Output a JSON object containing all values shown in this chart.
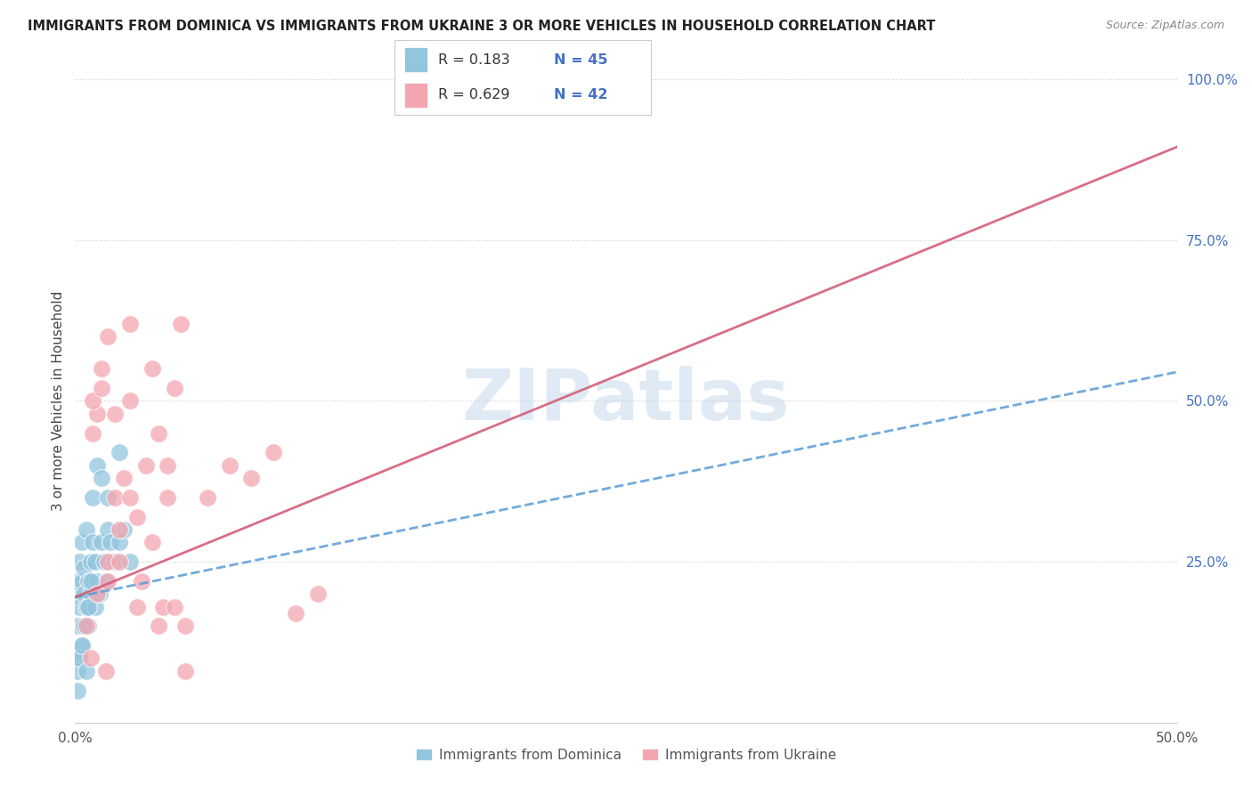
{
  "title": "IMMIGRANTS FROM DOMINICA VS IMMIGRANTS FROM UKRAINE 3 OR MORE VEHICLES IN HOUSEHOLD CORRELATION CHART",
  "source": "Source: ZipAtlas.com",
  "ylabel": "3 or more Vehicles in Household",
  "xlim": [
    0,
    0.5
  ],
  "ylim": [
    0,
    1.0
  ],
  "xtick_labels": [
    "0.0%",
    "",
    "",
    "",
    "",
    "50.0%"
  ],
  "ytick_vals": [
    0.0,
    0.25,
    0.5,
    0.75,
    1.0
  ],
  "ytick_labels": [
    "",
    "25.0%",
    "50.0%",
    "75.0%",
    "100.0%"
  ],
  "watermark": "ZIPatlas",
  "legend_r1": "R = 0.183",
  "legend_n1": "N = 45",
  "legend_r2": "R = 0.629",
  "legend_n2": "N = 42",
  "color_dominica": "#92c5de",
  "color_ukraine": "#f4a6b0",
  "trendline_color_dominica": "#5b9bd5",
  "trendline_color_ukraine": "#d45f7a",
  "grid_color": "#cccccc",
  "background_color": "#ffffff",
  "ytick_color": "#4472c4",
  "xtick_color": "#555555",
  "title_color": "#222222",
  "source_color": "#888888",
  "ylabel_color": "#444444",
  "legend_text_color": "#333333",
  "legend_num_color": "#4472c4",
  "dom_x": [
    0.001,
    0.001,
    0.001,
    0.002,
    0.002,
    0.002,
    0.003,
    0.003,
    0.003,
    0.004,
    0.004,
    0.005,
    0.005,
    0.006,
    0.006,
    0.007,
    0.007,
    0.008,
    0.008,
    0.009,
    0.009,
    0.01,
    0.011,
    0.012,
    0.013,
    0.014,
    0.015,
    0.016,
    0.018,
    0.02,
    0.022,
    0.025,
    0.001,
    0.002,
    0.003,
    0.004,
    0.005,
    0.006,
    0.007,
    0.008,
    0.01,
    0.012,
    0.015,
    0.02,
    0.001
  ],
  "dom_y": [
    0.2,
    0.22,
    0.15,
    0.18,
    0.25,
    0.1,
    0.22,
    0.28,
    0.12,
    0.2,
    0.24,
    0.18,
    0.3,
    0.22,
    0.15,
    0.25,
    0.2,
    0.28,
    0.22,
    0.18,
    0.25,
    0.22,
    0.2,
    0.28,
    0.25,
    0.22,
    0.3,
    0.28,
    0.25,
    0.28,
    0.3,
    0.25,
    0.08,
    0.1,
    0.12,
    0.15,
    0.08,
    0.18,
    0.22,
    0.35,
    0.4,
    0.38,
    0.35,
    0.42,
    0.05
  ],
  "ukr_x": [
    0.005,
    0.007,
    0.008,
    0.01,
    0.01,
    0.012,
    0.014,
    0.015,
    0.015,
    0.018,
    0.018,
    0.02,
    0.022,
    0.025,
    0.025,
    0.028,
    0.03,
    0.032,
    0.035,
    0.038,
    0.04,
    0.042,
    0.045,
    0.048,
    0.05,
    0.008,
    0.012,
    0.02,
    0.025,
    0.035,
    0.042,
    0.05,
    0.06,
    0.07,
    0.08,
    0.09,
    0.1,
    0.11,
    0.015,
    0.028,
    0.038,
    0.045
  ],
  "ukr_y": [
    0.15,
    0.1,
    0.45,
    0.2,
    0.48,
    0.55,
    0.08,
    0.25,
    0.6,
    0.35,
    0.48,
    0.3,
    0.38,
    0.35,
    0.62,
    0.32,
    0.22,
    0.4,
    0.28,
    0.45,
    0.18,
    0.35,
    0.52,
    0.62,
    0.08,
    0.5,
    0.52,
    0.25,
    0.5,
    0.55,
    0.4,
    0.15,
    0.35,
    0.4,
    0.38,
    0.42,
    0.17,
    0.2,
    0.22,
    0.18,
    0.15,
    0.18
  ],
  "dom_trend": [
    0.195,
    0.545
  ],
  "ukr_trend": [
    0.195,
    0.895
  ]
}
